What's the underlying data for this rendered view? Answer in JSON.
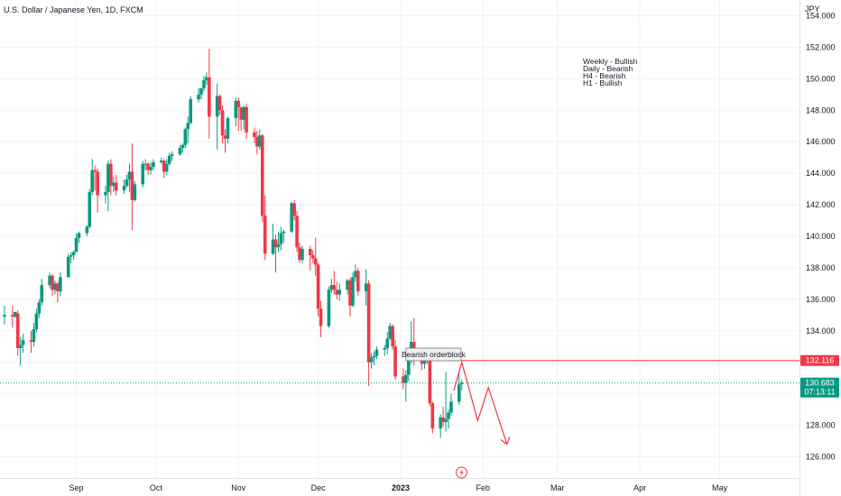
{
  "chart_data": {
    "type": "candlestick",
    "title": "U.S. Dollar / Japanese Yen, 1D, FXCM",
    "currency": "JPY",
    "y_ticks": [
      "126.000",
      "128.000",
      "130.000",
      "132.000",
      "134.000",
      "136.000",
      "138.000",
      "140.000",
      "142.000",
      "144.000",
      "146.000",
      "148.000",
      "150.000",
      "152.000",
      "154.000"
    ],
    "y_tick_values": [
      126,
      128,
      130,
      132,
      134,
      136,
      138,
      140,
      142,
      144,
      146,
      148,
      150,
      152,
      154
    ],
    "ylim": [
      125.4,
      154.6
    ],
    "x_labels": [
      {
        "text": "Sep",
        "date": "2022-09-01",
        "bold": false
      },
      {
        "text": "Oct",
        "date": "2022-10-01",
        "bold": false
      },
      {
        "text": "Nov",
        "date": "2022-11-01",
        "bold": false
      },
      {
        "text": "Dec",
        "date": "2022-12-01",
        "bold": false
      },
      {
        "text": "2023",
        "date": "2023-01-01",
        "bold": true
      },
      {
        "text": "Feb",
        "date": "2023-02-01",
        "bold": false
      },
      {
        "text": "Mar",
        "date": "2023-03-01",
        "bold": false
      },
      {
        "text": "Apr",
        "date": "2023-04-01",
        "bold": false
      },
      {
        "text": "May",
        "date": "2023-05-01",
        "bold": false
      }
    ],
    "xlim": [
      "2022-08-05",
      "2023-05-29"
    ],
    "colors": {
      "up": "#089981",
      "down": "#f23645",
      "grid": "#f0f3fa",
      "text": "#131722"
    },
    "annotations": {
      "notes": [
        "Weekly - Bullish",
        "Daily - Bearish",
        "H4 - Bearish",
        "H1 - Bullish"
      ],
      "orderblock": {
        "label": "Bearish orderblock",
        "start": "2023-01-03",
        "end": "2023-01-19",
        "top": 132.9,
        "bottom": 132.1
      },
      "level_line": {
        "value": 132.116,
        "start": "2023-01-19",
        "end": "2023-05-29",
        "color": "#f23645"
      },
      "current_price": {
        "value": 130.683,
        "countdown": "07:13:11",
        "color": "#089981"
      },
      "projection": [
        {
          "date": "2023-01-21",
          "value": 130.2
        },
        {
          "date": "2023-01-24",
          "value": 132.0
        },
        {
          "date": "2023-01-30",
          "value": 128.3
        },
        {
          "date": "2023-02-03",
          "value": 130.4
        },
        {
          "date": "2023-02-10",
          "value": 126.8
        }
      ]
    },
    "candles": [
      {
        "d": "2022-08-05",
        "o": 134.9,
        "h": 135.6,
        "c": 135.0,
        "l": 134.4
      },
      {
        "d": "2022-08-08",
        "o": 135.0,
        "h": 135.6,
        "c": 134.9,
        "l": 134.2
      },
      {
        "d": "2022-08-09",
        "o": 134.9,
        "h": 135.1,
        "c": 135.2,
        "l": 134.8
      },
      {
        "d": "2022-08-10",
        "o": 135.1,
        "h": 135.3,
        "c": 132.9,
        "l": 132.4
      },
      {
        "d": "2022-08-11",
        "o": 132.9,
        "h": 133.6,
        "c": 133.1,
        "l": 131.8
      },
      {
        "d": "2022-08-12",
        "o": 133.1,
        "h": 133.8,
        "c": 133.4,
        "l": 132.6
      },
      {
        "d": "2022-08-15",
        "o": 133.4,
        "h": 134.0,
        "c": 133.3,
        "l": 132.6
      },
      {
        "d": "2022-08-16",
        "o": 133.3,
        "h": 134.5,
        "c": 134.1,
        "l": 133.0
      },
      {
        "d": "2022-08-17",
        "o": 134.1,
        "h": 135.4,
        "c": 135.1,
        "l": 133.9
      },
      {
        "d": "2022-08-18",
        "o": 135.1,
        "h": 136.0,
        "c": 135.8,
        "l": 134.8
      },
      {
        "d": "2022-08-19",
        "o": 135.8,
        "h": 137.3,
        "c": 136.9,
        "l": 135.6
      },
      {
        "d": "2022-08-22",
        "o": 136.9,
        "h": 137.7,
        "c": 137.5,
        "l": 136.7
      },
      {
        "d": "2022-08-23",
        "o": 137.5,
        "h": 137.6,
        "c": 136.6,
        "l": 136.2
      },
      {
        "d": "2022-08-24",
        "o": 136.6,
        "h": 137.2,
        "c": 137.0,
        "l": 136.3
      },
      {
        "d": "2022-08-25",
        "o": 137.0,
        "h": 137.1,
        "c": 136.5,
        "l": 135.8
      },
      {
        "d": "2022-08-26",
        "o": 136.5,
        "h": 137.7,
        "c": 137.4,
        "l": 136.2
      },
      {
        "d": "2022-08-29",
        "o": 137.4,
        "h": 138.9,
        "c": 138.7,
        "l": 137.4
      },
      {
        "d": "2022-08-30",
        "o": 138.7,
        "h": 139.0,
        "c": 138.8,
        "l": 138.3
      },
      {
        "d": "2022-08-31",
        "o": 138.8,
        "h": 139.1,
        "c": 139.0,
        "l": 138.5
      },
      {
        "d": "2022-09-01",
        "o": 139.0,
        "h": 140.2,
        "c": 139.9,
        "l": 139.0
      },
      {
        "d": "2022-09-02",
        "o": 139.9,
        "h": 140.3,
        "c": 140.2,
        "l": 139.6
      },
      {
        "d": "2022-09-05",
        "o": 140.2,
        "h": 140.7,
        "c": 140.6,
        "l": 140.0
      },
      {
        "d": "2022-09-06",
        "o": 140.6,
        "h": 143.0,
        "c": 142.8,
        "l": 140.5
      },
      {
        "d": "2022-09-07",
        "o": 142.8,
        "h": 144.9,
        "c": 144.2,
        "l": 142.6
      },
      {
        "d": "2022-09-08",
        "o": 144.2,
        "h": 144.5,
        "c": 144.1,
        "l": 142.9
      },
      {
        "d": "2022-09-09",
        "o": 144.1,
        "h": 144.3,
        "c": 142.6,
        "l": 141.5
      },
      {
        "d": "2022-09-12",
        "o": 142.6,
        "h": 143.2,
        "c": 142.8,
        "l": 142.1
      },
      {
        "d": "2022-09-13",
        "o": 142.8,
        "h": 144.8,
        "c": 144.6,
        "l": 141.6
      },
      {
        "d": "2022-09-14",
        "o": 144.6,
        "h": 144.9,
        "c": 143.2,
        "l": 142.6
      },
      {
        "d": "2022-09-15",
        "o": 143.2,
        "h": 143.8,
        "c": 143.4,
        "l": 142.8
      },
      {
        "d": "2022-09-16",
        "o": 143.4,
        "h": 143.9,
        "c": 142.9,
        "l": 142.6
      },
      {
        "d": "2022-09-19",
        "o": 142.9,
        "h": 143.6,
        "c": 143.2,
        "l": 142.7
      },
      {
        "d": "2022-09-20",
        "o": 143.2,
        "h": 143.9,
        "c": 143.6,
        "l": 143.1
      },
      {
        "d": "2022-09-21",
        "o": 143.6,
        "h": 144.6,
        "c": 144.1,
        "l": 142.8
      },
      {
        "d": "2022-09-22",
        "o": 144.1,
        "h": 145.9,
        "c": 142.3,
        "l": 140.4
      },
      {
        "d": "2022-09-23",
        "o": 142.3,
        "h": 143.5,
        "c": 143.3,
        "l": 142.2
      },
      {
        "d": "2022-09-26",
        "o": 143.3,
        "h": 144.8,
        "c": 144.6,
        "l": 143.1
      },
      {
        "d": "2022-09-27",
        "o": 144.6,
        "h": 144.9,
        "c": 144.6,
        "l": 144.2
      },
      {
        "d": "2022-09-28",
        "o": 144.6,
        "h": 144.7,
        "c": 144.2,
        "l": 143.9
      },
      {
        "d": "2022-09-29",
        "o": 144.2,
        "h": 144.7,
        "c": 144.4,
        "l": 143.9
      },
      {
        "d": "2022-09-30",
        "o": 144.4,
        "h": 144.9,
        "c": 144.7,
        "l": 144.2
      },
      {
        "d": "2022-10-03",
        "o": 144.7,
        "h": 145.0,
        "c": 144.8,
        "l": 144.6
      },
      {
        "d": "2022-10-04",
        "o": 144.8,
        "h": 144.9,
        "c": 144.1,
        "l": 143.7
      },
      {
        "d": "2022-10-05",
        "o": 144.1,
        "h": 144.9,
        "c": 144.6,
        "l": 143.9
      },
      {
        "d": "2022-10-06",
        "o": 144.6,
        "h": 145.3,
        "c": 145.1,
        "l": 144.5
      },
      {
        "d": "2022-10-07",
        "o": 145.1,
        "h": 145.4,
        "c": 145.2,
        "l": 144.8
      },
      {
        "d": "2022-10-10",
        "o": 145.2,
        "h": 145.8,
        "c": 145.6,
        "l": 145.1
      },
      {
        "d": "2022-10-11",
        "o": 145.6,
        "h": 145.9,
        "c": 145.8,
        "l": 145.3
      },
      {
        "d": "2022-10-12",
        "o": 145.8,
        "h": 146.9,
        "c": 146.8,
        "l": 145.6
      },
      {
        "d": "2022-10-13",
        "o": 146.8,
        "h": 147.6,
        "c": 147.2,
        "l": 145.9
      },
      {
        "d": "2022-10-14",
        "o": 147.2,
        "h": 148.9,
        "c": 148.7,
        "l": 147.1
      },
      {
        "d": "2022-10-17",
        "o": 148.7,
        "h": 149.4,
        "c": 149.0,
        "l": 148.5
      },
      {
        "d": "2022-10-18",
        "o": 149.0,
        "h": 149.3,
        "c": 149.4,
        "l": 148.7
      },
      {
        "d": "2022-10-19",
        "o": 149.4,
        "h": 150.2,
        "c": 149.9,
        "l": 149.2
      },
      {
        "d": "2022-10-20",
        "o": 149.9,
        "h": 150.4,
        "c": 150.1,
        "l": 149.6
      },
      {
        "d": "2022-10-21",
        "o": 150.1,
        "h": 151.9,
        "c": 147.6,
        "l": 146.2
      },
      {
        "d": "2022-10-24",
        "o": 147.6,
        "h": 149.7,
        "c": 148.9,
        "l": 145.5
      },
      {
        "d": "2022-10-25",
        "o": 148.9,
        "h": 149.0,
        "c": 148.0,
        "l": 147.7
      },
      {
        "d": "2022-10-26",
        "o": 148.0,
        "h": 148.3,
        "c": 146.4,
        "l": 145.9
      },
      {
        "d": "2022-10-27",
        "o": 146.4,
        "h": 146.8,
        "c": 146.2,
        "l": 145.3
      },
      {
        "d": "2022-10-28",
        "o": 146.2,
        "h": 147.6,
        "c": 147.5,
        "l": 145.9
      },
      {
        "d": "2022-10-31",
        "o": 147.5,
        "h": 148.8,
        "c": 148.6,
        "l": 147.0
      },
      {
        "d": "2022-11-01",
        "o": 148.6,
        "h": 148.8,
        "c": 148.2,
        "l": 146.7
      },
      {
        "d": "2022-11-02",
        "o": 148.2,
        "h": 148.2,
        "c": 147.4,
        "l": 146.7
      },
      {
        "d": "2022-11-03",
        "o": 147.4,
        "h": 148.3,
        "c": 148.2,
        "l": 146.8
      },
      {
        "d": "2022-11-04",
        "o": 148.2,
        "h": 148.4,
        "c": 146.6,
        "l": 146.2
      },
      {
        "d": "2022-11-07",
        "o": 146.6,
        "h": 146.9,
        "c": 146.3,
        "l": 145.9
      },
      {
        "d": "2022-11-08",
        "o": 146.3,
        "h": 146.7,
        "c": 145.7,
        "l": 145.2
      },
      {
        "d": "2022-11-09",
        "o": 145.7,
        "h": 146.8,
        "c": 146.4,
        "l": 145.5
      },
      {
        "d": "2022-11-10",
        "o": 146.4,
        "h": 146.5,
        "c": 141.3,
        "l": 140.9
      },
      {
        "d": "2022-11-11",
        "o": 141.3,
        "h": 142.6,
        "c": 138.9,
        "l": 138.5
      },
      {
        "d": "2022-11-14",
        "o": 138.9,
        "h": 140.8,
        "c": 139.8,
        "l": 138.8
      },
      {
        "d": "2022-11-15",
        "o": 139.8,
        "h": 140.1,
        "c": 139.3,
        "l": 137.7
      },
      {
        "d": "2022-11-16",
        "o": 139.3,
        "h": 140.3,
        "c": 139.5,
        "l": 139.0
      },
      {
        "d": "2022-11-17",
        "o": 139.5,
        "h": 140.6,
        "c": 140.2,
        "l": 139.1
      },
      {
        "d": "2022-11-18",
        "o": 140.2,
        "h": 140.4,
        "c": 140.3,
        "l": 139.6
      },
      {
        "d": "2022-11-21",
        "o": 140.3,
        "h": 142.2,
        "c": 142.1,
        "l": 140.2
      },
      {
        "d": "2022-11-22",
        "o": 142.1,
        "h": 142.3,
        "c": 141.3,
        "l": 141.0
      },
      {
        "d": "2022-11-23",
        "o": 141.3,
        "h": 141.6,
        "c": 139.3,
        "l": 139.0
      },
      {
        "d": "2022-11-24",
        "o": 139.3,
        "h": 139.6,
        "c": 138.5,
        "l": 138.3
      },
      {
        "d": "2022-11-25",
        "o": 138.5,
        "h": 139.4,
        "c": 139.2,
        "l": 138.3
      },
      {
        "d": "2022-11-28",
        "o": 139.2,
        "h": 139.4,
        "c": 138.8,
        "l": 137.8
      },
      {
        "d": "2022-11-29",
        "o": 138.8,
        "h": 139.1,
        "c": 138.6,
        "l": 138.3
      },
      {
        "d": "2022-11-30",
        "o": 138.6,
        "h": 139.9,
        "c": 138.2,
        "l": 137.5
      },
      {
        "d": "2022-12-01",
        "o": 138.2,
        "h": 138.3,
        "c": 135.4,
        "l": 134.9
      },
      {
        "d": "2022-12-02",
        "o": 135.4,
        "h": 135.9,
        "c": 134.3,
        "l": 133.6
      },
      {
        "d": "2022-12-05",
        "o": 134.3,
        "h": 136.8,
        "c": 136.6,
        "l": 134.2
      },
      {
        "d": "2022-12-06",
        "o": 136.6,
        "h": 137.3,
        "c": 136.9,
        "l": 136.4
      },
      {
        "d": "2022-12-07",
        "o": 136.9,
        "h": 137.8,
        "c": 136.6,
        "l": 136.3
      },
      {
        "d": "2022-12-08",
        "o": 136.6,
        "h": 137.1,
        "c": 136.3,
        "l": 136.0
      },
      {
        "d": "2022-12-09",
        "o": 136.3,
        "h": 137.0,
        "c": 136.6,
        "l": 135.9
      },
      {
        "d": "2022-12-12",
        "o": 136.6,
        "h": 137.3,
        "c": 137.2,
        "l": 136.3
      },
      {
        "d": "2022-12-13",
        "o": 137.2,
        "h": 137.4,
        "c": 135.6,
        "l": 134.9
      },
      {
        "d": "2022-12-14",
        "o": 135.6,
        "h": 137.7,
        "c": 137.4,
        "l": 135.5
      },
      {
        "d": "2022-12-15",
        "o": 137.4,
        "h": 138.2,
        "c": 137.8,
        "l": 137.1
      },
      {
        "d": "2022-12-16",
        "o": 137.8,
        "h": 138.0,
        "c": 136.5,
        "l": 136.2
      },
      {
        "d": "2022-12-19",
        "o": 136.5,
        "h": 137.9,
        "c": 137.0,
        "l": 135.6
      },
      {
        "d": "2022-12-20",
        "o": 137.0,
        "h": 137.2,
        "c": 132.0,
        "l": 130.5
      },
      {
        "d": "2022-12-21",
        "o": 132.0,
        "h": 132.6,
        "c": 132.3,
        "l": 131.6
      },
      {
        "d": "2022-12-22",
        "o": 132.3,
        "h": 132.7,
        "c": 132.4,
        "l": 131.8
      },
      {
        "d": "2022-12-23",
        "o": 132.4,
        "h": 133.0,
        "c": 132.8,
        "l": 132.2
      },
      {
        "d": "2022-12-26",
        "o": 132.8,
        "h": 133.1,
        "c": 132.9,
        "l": 132.4
      },
      {
        "d": "2022-12-27",
        "o": 132.9,
        "h": 133.9,
        "c": 133.5,
        "l": 132.5
      },
      {
        "d": "2022-12-28",
        "o": 133.5,
        "h": 134.5,
        "c": 134.3,
        "l": 133.4
      },
      {
        "d": "2022-12-29",
        "o": 134.3,
        "h": 134.4,
        "c": 133.0,
        "l": 132.8
      },
      {
        "d": "2022-12-30",
        "o": 133.0,
        "h": 133.4,
        "c": 131.1,
        "l": 130.9
      },
      {
        "d": "2023-01-02",
        "o": 131.1,
        "h": 131.6,
        "c": 130.7,
        "l": 130.3
      },
      {
        "d": "2023-01-03",
        "o": 130.7,
        "h": 131.5,
        "c": 131.2,
        "l": 129.5
      },
      {
        "d": "2023-01-04",
        "o": 131.2,
        "h": 132.4,
        "c": 132.3,
        "l": 130.8
      },
      {
        "d": "2023-01-05",
        "o": 132.3,
        "h": 134.6,
        "c": 133.3,
        "l": 131.9
      },
      {
        "d": "2023-01-06",
        "o": 133.3,
        "h": 134.8,
        "c": 132.2,
        "l": 131.8
      },
      {
        "d": "2023-01-09",
        "o": 132.2,
        "h": 132.5,
        "c": 131.9,
        "l": 131.5
      },
      {
        "d": "2023-01-10",
        "o": 131.9,
        "h": 132.6,
        "c": 132.3,
        "l": 131.6
      },
      {
        "d": "2023-01-11",
        "o": 132.3,
        "h": 132.8,
        "c": 132.7,
        "l": 131.9
      },
      {
        "d": "2023-01-12",
        "o": 132.7,
        "h": 132.9,
        "c": 129.4,
        "l": 129.2
      },
      {
        "d": "2023-01-13",
        "o": 129.4,
        "h": 129.5,
        "c": 127.8,
        "l": 127.5
      },
      {
        "d": "2023-01-16",
        "o": 127.8,
        "h": 128.7,
        "c": 128.5,
        "l": 127.2
      },
      {
        "d": "2023-01-17",
        "o": 128.5,
        "h": 129.2,
        "c": 128.2,
        "l": 127.9
      },
      {
        "d": "2023-01-18",
        "o": 128.2,
        "h": 131.4,
        "c": 128.4,
        "l": 127.6
      },
      {
        "d": "2023-01-19",
        "o": 128.4,
        "h": 129.0,
        "c": 128.8,
        "l": 127.8
      },
      {
        "d": "2023-01-20",
        "o": 128.8,
        "h": 130.0,
        "c": 129.5,
        "l": 128.6
      },
      {
        "d": "2023-01-23",
        "o": 129.5,
        "h": 131.3,
        "c": 130.6,
        "l": 129.3
      },
      {
        "d": "2023-01-24",
        "o": 130.6,
        "h": 130.9,
        "c": 130.7,
        "l": 130.2
      }
    ]
  }
}
